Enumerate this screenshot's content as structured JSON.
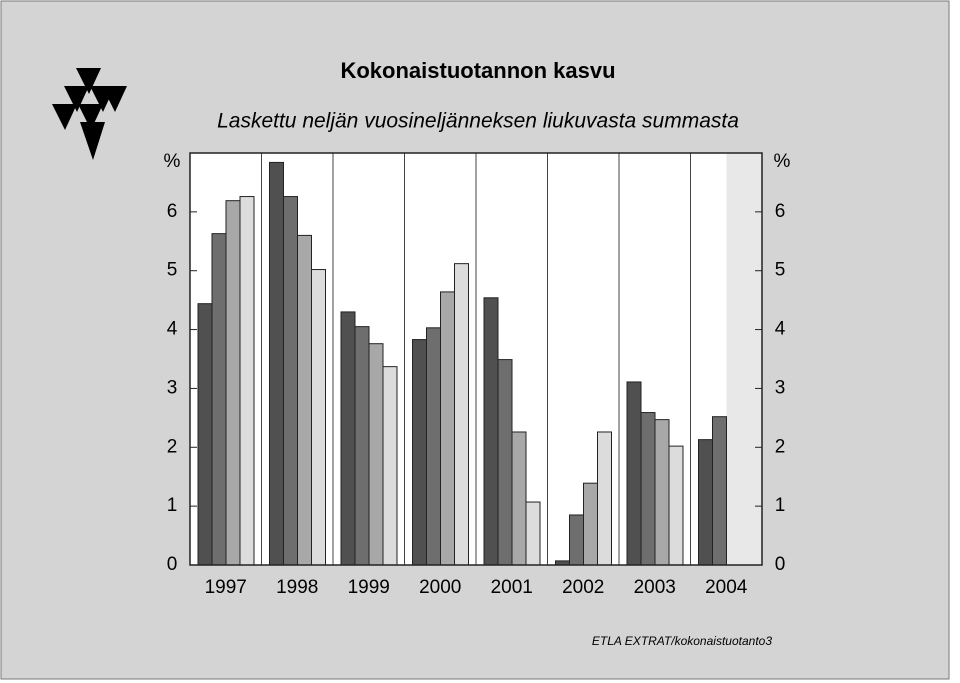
{
  "chart_data": {
    "type": "bar",
    "title": "Kokonaistuotannon kasvu",
    "subtitle": "Laskettu neljän vuosineljänneksen liukuvasta summasta",
    "y_label": "%",
    "source": "ETLA EXTRAT/kokonaistuotanto3",
    "categories": [
      "1997",
      "1998",
      "1999",
      "2000",
      "2001",
      "2002",
      "2003",
      "2004"
    ],
    "series": [
      {
        "color": "#505050",
        "values": [
          4.44,
          6.84,
          4.3,
          3.83,
          4.54,
          0.07,
          3.11,
          2.13
        ]
      },
      {
        "color": "#6e6e6e",
        "values": [
          5.63,
          6.26,
          4.05,
          4.03,
          3.49,
          0.85,
          2.59,
          2.52
        ]
      },
      {
        "color": "#a8a8a8",
        "values": [
          6.19,
          5.6,
          3.76,
          4.64,
          2.26,
          1.39,
          2.47,
          null
        ]
      },
      {
        "color": "#dcdcdc",
        "values": [
          6.26,
          5.02,
          3.37,
          5.12,
          1.07,
          2.26,
          2.02,
          null
        ]
      }
    ],
    "ylim": [
      0,
      7
    ],
    "yticks": [
      0,
      1,
      2,
      3,
      4,
      5,
      6
    ],
    "y2lim": [
      0,
      7
    ],
    "y2ticks": [
      0,
      1,
      2,
      3,
      4,
      5,
      6
    ]
  }
}
